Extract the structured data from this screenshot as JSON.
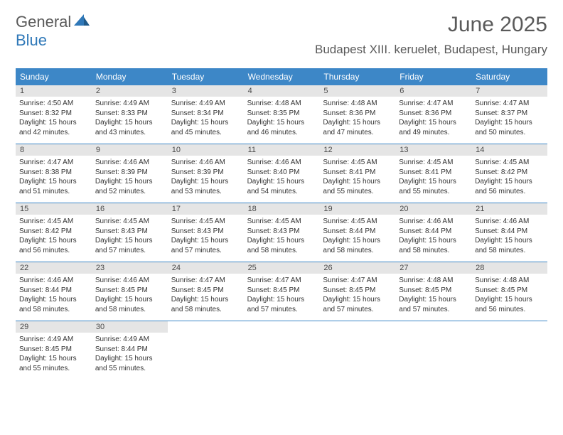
{
  "brand": {
    "text1": "General",
    "text2": "Blue"
  },
  "title": "June 2025",
  "subtitle": "Budapest XIII. keruelet, Budapest, Hungary",
  "colors": {
    "header_bg": "#3d87c7",
    "header_text": "#ffffff",
    "daynum_bg": "#e5e5e5",
    "row_border": "#3d87c7",
    "brand_gray": "#5a5a5a",
    "brand_blue": "#2f78b8"
  },
  "weekdays": [
    "Sunday",
    "Monday",
    "Tuesday",
    "Wednesday",
    "Thursday",
    "Friday",
    "Saturday"
  ],
  "labels": {
    "sunrise": "Sunrise:",
    "sunset": "Sunset:",
    "daylight": "Daylight:"
  },
  "days": [
    {
      "n": 1,
      "sr": "4:50 AM",
      "ss": "8:32 PM",
      "dh": 15,
      "dm": 42
    },
    {
      "n": 2,
      "sr": "4:49 AM",
      "ss": "8:33 PM",
      "dh": 15,
      "dm": 43
    },
    {
      "n": 3,
      "sr": "4:49 AM",
      "ss": "8:34 PM",
      "dh": 15,
      "dm": 45
    },
    {
      "n": 4,
      "sr": "4:48 AM",
      "ss": "8:35 PM",
      "dh": 15,
      "dm": 46
    },
    {
      "n": 5,
      "sr": "4:48 AM",
      "ss": "8:36 PM",
      "dh": 15,
      "dm": 47
    },
    {
      "n": 6,
      "sr": "4:47 AM",
      "ss": "8:36 PM",
      "dh": 15,
      "dm": 49
    },
    {
      "n": 7,
      "sr": "4:47 AM",
      "ss": "8:37 PM",
      "dh": 15,
      "dm": 50
    },
    {
      "n": 8,
      "sr": "4:47 AM",
      "ss": "8:38 PM",
      "dh": 15,
      "dm": 51
    },
    {
      "n": 9,
      "sr": "4:46 AM",
      "ss": "8:39 PM",
      "dh": 15,
      "dm": 52
    },
    {
      "n": 10,
      "sr": "4:46 AM",
      "ss": "8:39 PM",
      "dh": 15,
      "dm": 53
    },
    {
      "n": 11,
      "sr": "4:46 AM",
      "ss": "8:40 PM",
      "dh": 15,
      "dm": 54
    },
    {
      "n": 12,
      "sr": "4:45 AM",
      "ss": "8:41 PM",
      "dh": 15,
      "dm": 55
    },
    {
      "n": 13,
      "sr": "4:45 AM",
      "ss": "8:41 PM",
      "dh": 15,
      "dm": 55
    },
    {
      "n": 14,
      "sr": "4:45 AM",
      "ss": "8:42 PM",
      "dh": 15,
      "dm": 56
    },
    {
      "n": 15,
      "sr": "4:45 AM",
      "ss": "8:42 PM",
      "dh": 15,
      "dm": 56
    },
    {
      "n": 16,
      "sr": "4:45 AM",
      "ss": "8:43 PM",
      "dh": 15,
      "dm": 57
    },
    {
      "n": 17,
      "sr": "4:45 AM",
      "ss": "8:43 PM",
      "dh": 15,
      "dm": 57
    },
    {
      "n": 18,
      "sr": "4:45 AM",
      "ss": "8:43 PM",
      "dh": 15,
      "dm": 58
    },
    {
      "n": 19,
      "sr": "4:45 AM",
      "ss": "8:44 PM",
      "dh": 15,
      "dm": 58
    },
    {
      "n": 20,
      "sr": "4:46 AM",
      "ss": "8:44 PM",
      "dh": 15,
      "dm": 58
    },
    {
      "n": 21,
      "sr": "4:46 AM",
      "ss": "8:44 PM",
      "dh": 15,
      "dm": 58
    },
    {
      "n": 22,
      "sr": "4:46 AM",
      "ss": "8:44 PM",
      "dh": 15,
      "dm": 58
    },
    {
      "n": 23,
      "sr": "4:46 AM",
      "ss": "8:45 PM",
      "dh": 15,
      "dm": 58
    },
    {
      "n": 24,
      "sr": "4:47 AM",
      "ss": "8:45 PM",
      "dh": 15,
      "dm": 58
    },
    {
      "n": 25,
      "sr": "4:47 AM",
      "ss": "8:45 PM",
      "dh": 15,
      "dm": 57
    },
    {
      "n": 26,
      "sr": "4:47 AM",
      "ss": "8:45 PM",
      "dh": 15,
      "dm": 57
    },
    {
      "n": 27,
      "sr": "4:48 AM",
      "ss": "8:45 PM",
      "dh": 15,
      "dm": 57
    },
    {
      "n": 28,
      "sr": "4:48 AM",
      "ss": "8:45 PM",
      "dh": 15,
      "dm": 56
    },
    {
      "n": 29,
      "sr": "4:49 AM",
      "ss": "8:45 PM",
      "dh": 15,
      "dm": 55
    },
    {
      "n": 30,
      "sr": "4:49 AM",
      "ss": "8:44 PM",
      "dh": 15,
      "dm": 55
    }
  ],
  "grid": {
    "first_weekday_index": 0,
    "total_cells": 35
  }
}
